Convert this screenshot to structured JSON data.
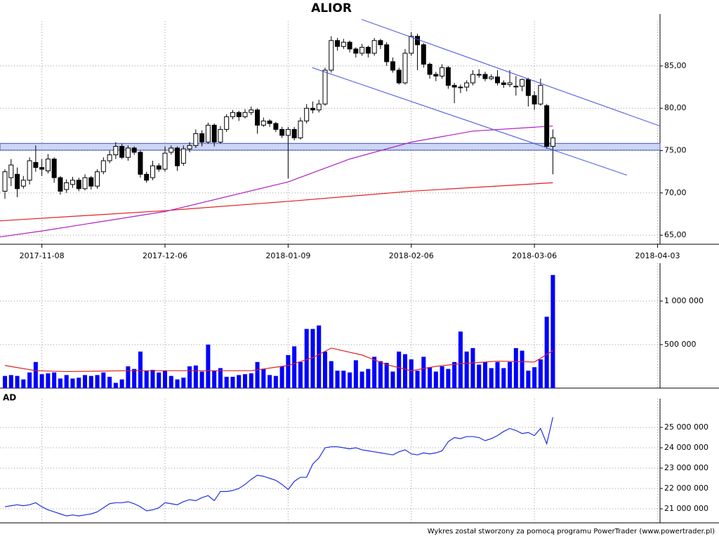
{
  "chart_data": [
    {
      "type": "candlestick",
      "title": "ALIOR",
      "xlim": [
        -0.8,
        106.4
      ],
      "xticks": [
        {
          "value": 6,
          "label": "2017-11-08"
        },
        {
          "value": 26,
          "label": "2017-12-06"
        },
        {
          "value": 46,
          "label": "2018-01-09"
        },
        {
          "value": 66,
          "label": "2018-02-06"
        },
        {
          "value": 86,
          "label": "2018-03-06"
        },
        {
          "value": 106,
          "label": "2018-04-03"
        }
      ],
      "ylim": [
        64.6,
        90.3
      ],
      "yticks": [
        {
          "value": 65,
          "label": "65,00"
        },
        {
          "value": 70,
          "label": "70,00"
        },
        {
          "value": 75,
          "label": "75,00"
        },
        {
          "value": 80,
          "label": "80,00"
        },
        {
          "value": 85,
          "label": "85,00"
        }
      ],
      "grid": true,
      "ohlc": [
        [
          70.2,
          72.8,
          69.3,
          72.5
        ],
        [
          71.8,
          74,
          70.8,
          73.3
        ],
        [
          72.2,
          73,
          69.5,
          70.5
        ],
        [
          70.8,
          72,
          70.5,
          71.5
        ],
        [
          71.5,
          74.2,
          71,
          73.8
        ],
        [
          73.6,
          75.6,
          72.5,
          73
        ],
        [
          73,
          74,
          72,
          72.8
        ],
        [
          72.6,
          74.6,
          72.3,
          74
        ],
        [
          74,
          74.2,
          71.2,
          71.8
        ],
        [
          71.8,
          72,
          69.8,
          70.2
        ],
        [
          70.4,
          71.6,
          70,
          71.2
        ],
        [
          71,
          71.9,
          70.6,
          71.5
        ],
        [
          71.5,
          71.8,
          70.2,
          70.5
        ],
        [
          70.5,
          72.2,
          70.3,
          71.8
        ],
        [
          71.8,
          72,
          70.4,
          70.8
        ],
        [
          70.8,
          72.8,
          70.5,
          72.5
        ],
        [
          72.5,
          74.2,
          72.2,
          73.8
        ],
        [
          73.8,
          75,
          73.5,
          74.5
        ],
        [
          74.5,
          76,
          74,
          75.5
        ],
        [
          75.5,
          75.8,
          74,
          74.2
        ],
        [
          74.2,
          75.6,
          73.8,
          75.3
        ],
        [
          75.3,
          75.5,
          74.5,
          74.8
        ],
        [
          74.8,
          75,
          71.8,
          72.2
        ],
        [
          72.2,
          72.5,
          71.2,
          71.5
        ],
        [
          71.8,
          73.8,
          71.5,
          73.2
        ],
        [
          73.2,
          73.5,
          72.5,
          72.8
        ],
        [
          72.8,
          75.5,
          72.5,
          74.7
        ],
        [
          74.8,
          75.6,
          74.5,
          75.3
        ],
        [
          75.3,
          75.5,
          72.6,
          73.2
        ],
        [
          73.5,
          75.6,
          73.2,
          75.2
        ],
        [
          75.2,
          76,
          74.8,
          75.6
        ],
        [
          75.6,
          77.5,
          75.3,
          77
        ],
        [
          77,
          77.4,
          75.5,
          76
        ],
        [
          76,
          78.3,
          75.8,
          78
        ],
        [
          78,
          78.2,
          75.5,
          76
        ],
        [
          76,
          77.9,
          75.8,
          77.5
        ],
        [
          77.5,
          79.3,
          77.2,
          79
        ],
        [
          79,
          79.8,
          78.7,
          79.5
        ],
        [
          79.5,
          79.7,
          78.5,
          79
        ],
        [
          79,
          79.9,
          78.8,
          79.5
        ],
        [
          79.5,
          80.2,
          79.2,
          79.8
        ],
        [
          79.8,
          80,
          77,
          78
        ],
        [
          78,
          78.9,
          77.8,
          78.5
        ],
        [
          78.5,
          78.7,
          77.8,
          78.2
        ],
        [
          78.2,
          78.4,
          77.2,
          77.5
        ],
        [
          77.5,
          77.8,
          76.5,
          76.8
        ],
        [
          76.8,
          77.8,
          71.7,
          77.5
        ],
        [
          77.5,
          77.8,
          76.2,
          76.5
        ],
        [
          76.5,
          78.9,
          76.3,
          78.5
        ],
        [
          78.5,
          80.5,
          78.2,
          80
        ],
        [
          80,
          80.8,
          79.4,
          79.8
        ],
        [
          79.8,
          81,
          79.5,
          80.5
        ],
        [
          80.5,
          84.8,
          80.3,
          84.5
        ],
        [
          84.5,
          88.5,
          84.2,
          88
        ],
        [
          88,
          88.3,
          86.8,
          87.3
        ],
        [
          87.3,
          88.2,
          87,
          87.8
        ],
        [
          87.8,
          88,
          86.6,
          87
        ],
        [
          87,
          87.2,
          86,
          86.5
        ],
        [
          86.5,
          87.6,
          86.2,
          87.2
        ],
        [
          87.2,
          87.4,
          86,
          86.5
        ],
        [
          86.5,
          88.3,
          86.2,
          88
        ],
        [
          88,
          88.2,
          87,
          87.5
        ],
        [
          87.5,
          87.8,
          85,
          85.5
        ],
        [
          85.5,
          86,
          84.2,
          84.5
        ],
        [
          84.5,
          84.8,
          82.8,
          83
        ],
        [
          83,
          87,
          82.8,
          86.5
        ],
        [
          86.5,
          89,
          86.2,
          88.5
        ],
        [
          88.5,
          88.8,
          84.5,
          87.5
        ],
        [
          87.5,
          87.7,
          84.8,
          85.2
        ],
        [
          85.2,
          85.4,
          83.5,
          84
        ],
        [
          84,
          84.3,
          83.2,
          83.8
        ],
        [
          83.8,
          85.2,
          83.5,
          84.8
        ],
        [
          84.8,
          85,
          82.3,
          82.7
        ],
        [
          82.7,
          83,
          80.6,
          82.5
        ],
        [
          82.5,
          82.8,
          81.8,
          82.5
        ],
        [
          82.5,
          83.3,
          82,
          83
        ],
        [
          83,
          84.5,
          82.7,
          84
        ],
        [
          84,
          84.6,
          83.6,
          84
        ],
        [
          84,
          84.3,
          83.2,
          83.5
        ],
        [
          83.5,
          84,
          83.3,
          83.7
        ],
        [
          83.7,
          84.5,
          82.7,
          83
        ],
        [
          83,
          83.3,
          82.4,
          82.8
        ],
        [
          82.8,
          84.5,
          82.5,
          83
        ],
        [
          82.6,
          83.8,
          81.5,
          82.6
        ],
        [
          82.6,
          83.5,
          82,
          83.4
        ],
        [
          83.4,
          83.6,
          80.2,
          81.5
        ],
        [
          81.5,
          82,
          79.8,
          80.5
        ],
        [
          80.5,
          83.5,
          80.3,
          82.7
        ],
        [
          80.3,
          80.5,
          75.2,
          75.5
        ],
        [
          75.5,
          77.5,
          72.2,
          76.5
        ]
      ],
      "ma": [
        {
          "color": "#e02020",
          "x": [
            -0.8,
            26,
            46,
            66,
            89
          ],
          "values": [
            66.7,
            67.9,
            69,
            70.2,
            71.2
          ]
        },
        {
          "color": "#b020c0",
          "x": [
            -0.8,
            6,
            26,
            46,
            56,
            66,
            76,
            89
          ],
          "values": [
            64.8,
            65.5,
            67.8,
            71.3,
            74,
            76,
            77.3,
            77.9
          ]
        }
      ],
      "band": [
        75.05,
        75.85
      ],
      "band_color": "#b8c4f0",
      "trendlines": [
        [
          57.9,
          90.5,
          106.4,
          77.9
        ],
        [
          49.9,
          84.8,
          101,
          72.1
        ]
      ],
      "trend_color": "#4050e0"
    },
    {
      "type": "bar",
      "color": "#0000ff",
      "ylim": [
        0,
        1355000
      ],
      "yticks": [
        {
          "value": 500000,
          "label": "500 000"
        },
        {
          "value": 1000000,
          "label": "1 000 000"
        }
      ],
      "values": [
        140000,
        150000,
        140000,
        100000,
        180000,
        300000,
        160000,
        170000,
        180000,
        110000,
        150000,
        110000,
        120000,
        150000,
        140000,
        150000,
        180000,
        130000,
        60000,
        100000,
        250000,
        220000,
        420000,
        200000,
        210000,
        180000,
        200000,
        140000,
        100000,
        120000,
        250000,
        260000,
        190000,
        500000,
        200000,
        230000,
        130000,
        130000,
        150000,
        160000,
        170000,
        300000,
        220000,
        150000,
        140000,
        250000,
        380000,
        480000,
        300000,
        680000,
        680000,
        720000,
        420000,
        310000,
        200000,
        200000,
        180000,
        320000,
        190000,
        220000,
        360000,
        310000,
        290000,
        190000,
        420000,
        390000,
        330000,
        200000,
        360000,
        240000,
        190000,
        250000,
        220000,
        300000,
        650000,
        420000,
        460000,
        270000,
        300000,
        230000,
        300000,
        230000,
        300000,
        460000,
        430000,
        200000,
        240000,
        330000,
        820000,
        1300000
      ],
      "ma": {
        "color": "#e02020",
        "x": [
          0,
          5,
          10,
          20,
          30,
          40,
          46,
          50,
          53,
          58,
          62,
          66,
          70,
          74,
          80,
          86,
          89
        ],
        "values": [
          260000,
          200000,
          190000,
          200000,
          200000,
          200000,
          260000,
          350000,
          460000,
          380000,
          270000,
          200000,
          250000,
          280000,
          310000,
          300000,
          430000
        ]
      }
    },
    {
      "type": "line",
      "title": "AD",
      "color": "#2030e0",
      "ylim": [
        20310000,
        26070000
      ],
      "yticks": [
        {
          "value": 21000000,
          "label": "21 000 000"
        },
        {
          "value": 22000000,
          "label": "22 000 000"
        },
        {
          "value": 23000000,
          "label": "23 000 000"
        },
        {
          "value": 24000000,
          "label": "24 000 000"
        },
        {
          "value": 25000000,
          "label": "25 000 000"
        }
      ],
      "values": [
        21100000,
        21150000,
        21200000,
        21150000,
        21200000,
        21300000,
        21100000,
        20950000,
        20850000,
        20750000,
        20650000,
        20700000,
        20650000,
        20700000,
        20750000,
        20850000,
        21050000,
        21250000,
        21300000,
        21300000,
        21350000,
        21250000,
        21100000,
        20900000,
        20950000,
        21050000,
        21300000,
        21250000,
        21200000,
        21350000,
        21450000,
        21400000,
        21550000,
        21650000,
        21400000,
        21850000,
        21850000,
        21900000,
        22000000,
        22200000,
        22450000,
        22650000,
        22600000,
        22500000,
        22400000,
        22200000,
        21950000,
        22350000,
        22550000,
        22550000,
        23200000,
        23500000,
        24000000,
        24050000,
        24050000,
        24000000,
        23950000,
        24000000,
        23900000,
        23850000,
        23800000,
        23750000,
        23700000,
        23650000,
        23800000,
        23900000,
        23700000,
        23650000,
        23750000,
        23700000,
        23750000,
        23850000,
        24300000,
        24500000,
        24450000,
        24550000,
        24550000,
        24500000,
        24350000,
        24450000,
        24600000,
        24800000,
        24950000,
        24850000,
        24700000,
        24750000,
        24600000,
        24950000,
        24200000,
        25500000
      ]
    }
  ],
  "footer": "Wykres został stworzony za pomocą programu PowerTrader (www.powertrader.pl)"
}
